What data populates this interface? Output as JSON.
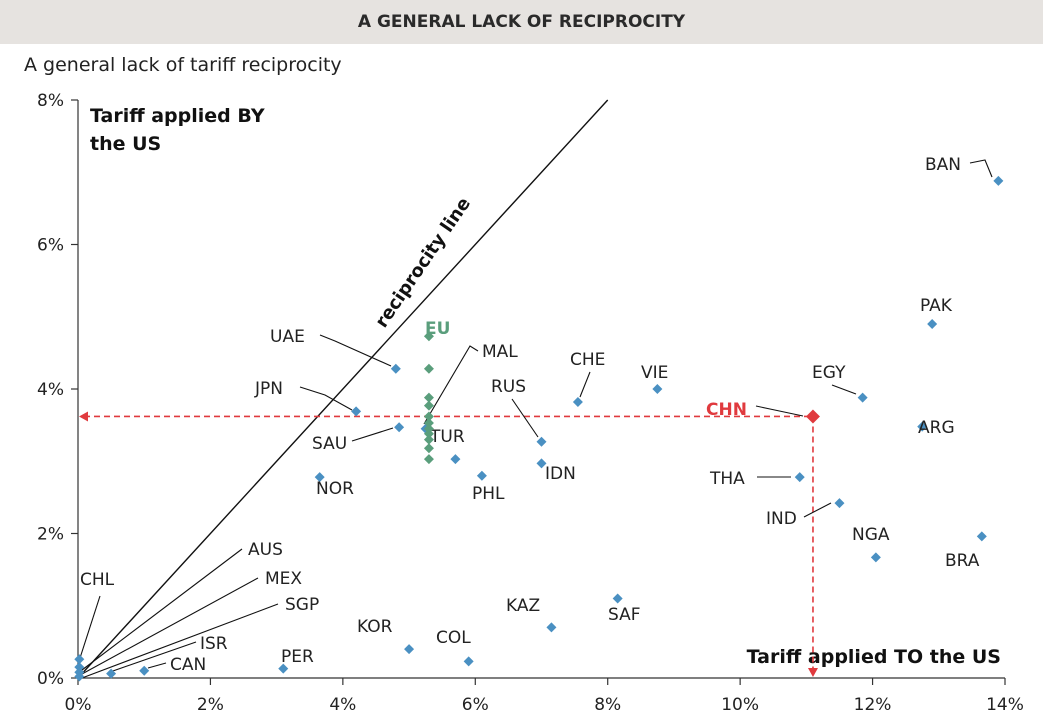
{
  "chart_data": {
    "type": "scatter",
    "banner": "A GENERAL LACK OF RECIPROCITY",
    "title": "A general lack of tariff reciprocity",
    "ylabel": "Tariff applied BY the US",
    "xlabel": "Tariff applied TO the US",
    "reciprocity_label": "reciprocity line",
    "xlim": [
      0,
      14
    ],
    "ylim": [
      0,
      8
    ],
    "x_ticks": [
      "0%",
      "2%",
      "4%",
      "6%",
      "8%",
      "10%",
      "12%",
      "14%"
    ],
    "y_ticks": [
      "0%",
      "2%",
      "4%",
      "6%",
      "8%"
    ],
    "colors": {
      "countries": "#4a90c2",
      "eu": "#5a9e7c",
      "china": "#e03a3e",
      "line": "#111111"
    },
    "countries": [
      {
        "name": "BAN",
        "x": 13.9,
        "y": 6.88
      },
      {
        "name": "PAK",
        "x": 12.9,
        "y": 4.9
      },
      {
        "name": "EGY",
        "x": 11.85,
        "y": 3.88
      },
      {
        "name": "ARG",
        "x": 12.75,
        "y": 3.48
      },
      {
        "name": "BRA",
        "x": 13.65,
        "y": 1.96
      },
      {
        "name": "NGA",
        "x": 12.05,
        "y": 1.67
      },
      {
        "name": "IND",
        "x": 11.5,
        "y": 2.42
      },
      {
        "name": "THA",
        "x": 10.9,
        "y": 2.78
      },
      {
        "name": "VIE",
        "x": 8.75,
        "y": 4.0
      },
      {
        "name": "CHE",
        "x": 7.55,
        "y": 3.82
      },
      {
        "name": "RUS",
        "x": 7.0,
        "y": 3.27
      },
      {
        "name": "IDN",
        "x": 7.0,
        "y": 2.97
      },
      {
        "name": "PHL",
        "x": 6.1,
        "y": 2.8
      },
      {
        "name": "TUR",
        "x": 5.7,
        "y": 3.03
      },
      {
        "name": "MAL",
        "x": 5.25,
        "y": 3.45
      },
      {
        "name": "UAE",
        "x": 4.8,
        "y": 4.28
      },
      {
        "name": "SAU",
        "x": 4.85,
        "y": 3.47
      },
      {
        "name": "JPN",
        "x": 4.2,
        "y": 3.69
      },
      {
        "name": "NOR",
        "x": 3.65,
        "y": 2.78
      },
      {
        "name": "SAF",
        "x": 8.15,
        "y": 1.1
      },
      {
        "name": "KAZ",
        "x": 7.15,
        "y": 0.7
      },
      {
        "name": "COL",
        "x": 5.9,
        "y": 0.23
      },
      {
        "name": "KOR",
        "x": 5.0,
        "y": 0.4
      },
      {
        "name": "PER",
        "x": 3.1,
        "y": 0.13
      },
      {
        "name": "CAN",
        "x": 1.0,
        "y": 0.1
      },
      {
        "name": "ISR",
        "x": 0.5,
        "y": 0.06
      },
      {
        "name": "CHL",
        "x": 0.02,
        "y": 0.26
      },
      {
        "name": "AUS",
        "x": 0.02,
        "y": 0.15
      },
      {
        "name": "MEX",
        "x": 0.02,
        "y": 0.08
      },
      {
        "name": "SGP",
        "x": 0.02,
        "y": 0.02
      }
    ],
    "eu": {
      "name": "EU",
      "x": 5.3,
      "y_values": [
        4.73,
        4.28,
        3.88,
        3.77,
        3.62,
        3.53,
        3.45,
        3.38,
        3.3,
        3.18,
        3.03
      ]
    },
    "china": {
      "name": "CHN",
      "x": 11.1,
      "y": 3.62
    }
  }
}
